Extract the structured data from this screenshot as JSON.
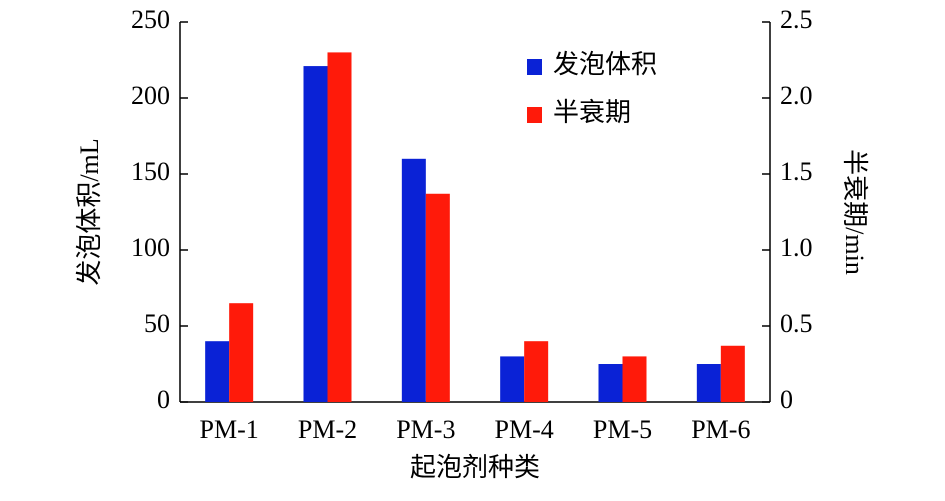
{
  "chart_data": {
    "type": "bar",
    "x_label": "起泡剂种类",
    "y_label": "发泡体积/mL",
    "y2_label": "半衰期/min",
    "categories": [
      "PM-1",
      "PM-2",
      "PM-3",
      "PM-4",
      "PM-5",
      "PM-6"
    ],
    "series": [
      {
        "name": "发泡体积",
        "color": "#0a22d6",
        "values": [
          40,
          221,
          160,
          30,
          25,
          25
        ]
      },
      {
        "name": "半衰期",
        "color": "#ff1a0a",
        "axis": "y2",
        "values": [
          0.65,
          2.3,
          1.37,
          0.4,
          0.3,
          0.37
        ]
      }
    ],
    "ylim": [
      0,
      250
    ],
    "yticks": [
      0,
      50,
      100,
      150,
      200,
      250
    ],
    "y2lim": [
      0,
      2.5
    ],
    "y2ticks": [
      0,
      0.5,
      {
        "value": 1,
        "label": "1.0"
      },
      1.5,
      {
        "value": 2,
        "label": "2.0"
      },
      2.5
    ],
    "legend": "upper right"
  }
}
